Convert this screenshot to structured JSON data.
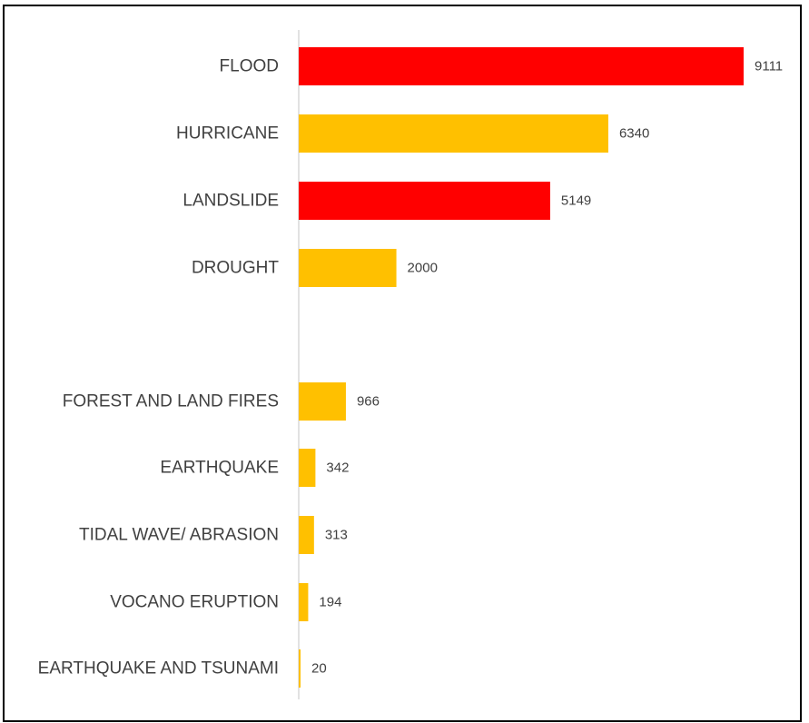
{
  "chart_data": {
    "type": "bar",
    "orientation": "horizontal",
    "categories": [
      "FLOOD",
      "HURRICANE",
      "LANDSLIDE",
      "DROUGHT",
      "FOREST AND LAND FIRES",
      "EARTHQUAKE",
      "TIDAL WAVE/ ABRASION",
      "VOCANO ERUPTION",
      "EARTHQUAKE AND TSUNAMI"
    ],
    "values": [
      9111,
      6340,
      5149,
      2000,
      966,
      342,
      313,
      194,
      20
    ],
    "data_labels": [
      "9111",
      "6340",
      "5149",
      "2000",
      "966",
      "342",
      "313",
      "194",
      "20"
    ],
    "bar_colors": [
      "#ff0000",
      "#ffc000",
      "#ff0000",
      "#ffc000",
      "#ffc000",
      "#ffc000",
      "#ffc000",
      "#ffc000",
      "#ffc000"
    ],
    "xlim": [
      0,
      9111
    ],
    "grid": false,
    "legend": "none"
  },
  "colors": {
    "highlight": "#ff0000",
    "default": "#ffc000",
    "axis_line": "#d9d9d9",
    "text": "#404040",
    "frame": "#000000"
  }
}
